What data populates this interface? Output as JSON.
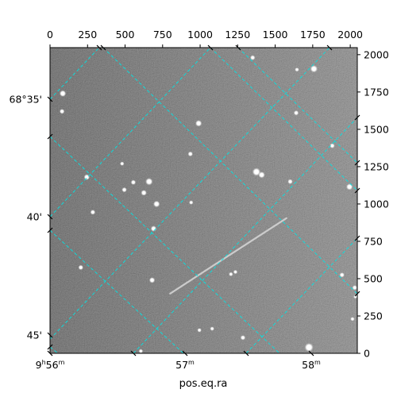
{
  "chart_data": {
    "type": "image",
    "xlabel": "pos.eq.ra",
    "pixel_x": {
      "range": [
        0,
        2047
      ],
      "ticks": [
        0,
        250,
        500,
        750,
        1000,
        1250,
        1500,
        1750,
        2000
      ],
      "tick_labels": [
        "0",
        "250",
        "500",
        "750",
        "1000",
        "1250",
        "1500",
        "1750",
        "2000"
      ]
    },
    "pixel_y": {
      "range": [
        0,
        2047
      ],
      "ticks": [
        0,
        250,
        500,
        750,
        1000,
        1250,
        1500,
        1750,
        2000
      ],
      "tick_labels": [
        "0",
        "250",
        "500",
        "750",
        "1000",
        "1250",
        "1500",
        "1750",
        "2000"
      ]
    },
    "ra_ticks": [
      {
        "h": "9",
        "m": "56"
      },
      {
        "h": "",
        "m": "57"
      },
      {
        "h": "",
        "m": "58"
      }
    ],
    "dec_ticks": [
      {
        "label": "68°35'"
      },
      {
        "label": "40'"
      },
      {
        "label": "45'"
      }
    ],
    "grid_color": "#00e5e5",
    "grid": true,
    "image_style": "grayscale noise field",
    "stars": [
      {
        "x": 85,
        "y": 1740,
        "r": 3
      },
      {
        "x": 80,
        "y": 1620,
        "r": 2
      },
      {
        "x": 1350,
        "y": 1980,
        "r": 2
      },
      {
        "x": 1758,
        "y": 1905,
        "r": 3.5
      },
      {
        "x": 1645,
        "y": 1900,
        "r": 1.5
      },
      {
        "x": 1640,
        "y": 1610,
        "r": 2
      },
      {
        "x": 990,
        "y": 1540,
        "r": 3
      },
      {
        "x": 935,
        "y": 1335,
        "r": 2
      },
      {
        "x": 480,
        "y": 1270,
        "r": 1.5
      },
      {
        "x": 660,
        "y": 1150,
        "r": 3.5
      },
      {
        "x": 555,
        "y": 1145,
        "r": 2
      },
      {
        "x": 625,
        "y": 1075,
        "r": 2.5
      },
      {
        "x": 495,
        "y": 1095,
        "r": 2
      },
      {
        "x": 245,
        "y": 1180,
        "r": 2.5
      },
      {
        "x": 1375,
        "y": 1215,
        "r": 4
      },
      {
        "x": 1410,
        "y": 1195,
        "r": 3
      },
      {
        "x": 1600,
        "y": 1150,
        "r": 2
      },
      {
        "x": 1880,
        "y": 1390,
        "r": 2
      },
      {
        "x": 1995,
        "y": 1115,
        "r": 3
      },
      {
        "x": 710,
        "y": 1000,
        "r": 3
      },
      {
        "x": 285,
        "y": 945,
        "r": 2
      },
      {
        "x": 690,
        "y": 835,
        "r": 2.5
      },
      {
        "x": 940,
        "y": 1010,
        "r": 1.5
      },
      {
        "x": 205,
        "y": 575,
        "r": 2
      },
      {
        "x": 680,
        "y": 490,
        "r": 2.5
      },
      {
        "x": 1235,
        "y": 545,
        "r": 1.5
      },
      {
        "x": 1205,
        "y": 530,
        "r": 1.5
      },
      {
        "x": 1945,
        "y": 525,
        "r": 2
      },
      {
        "x": 2030,
        "y": 440,
        "r": 2
      },
      {
        "x": 2035,
        "y": 380,
        "r": 1.5
      },
      {
        "x": 1725,
        "y": 40,
        "r": 4.5
      },
      {
        "x": 1285,
        "y": 105,
        "r": 2
      },
      {
        "x": 1080,
        "y": 165,
        "r": 1.5
      },
      {
        "x": 995,
        "y": 155,
        "r": 1.5
      },
      {
        "x": 605,
        "y": 15,
        "r": 1.5
      },
      {
        "x": 2015,
        "y": 230,
        "r": 1.5
      }
    ],
    "streak": {
      "x1": 800,
      "y1": 400,
      "x2": 1575,
      "y2": 905
    }
  }
}
